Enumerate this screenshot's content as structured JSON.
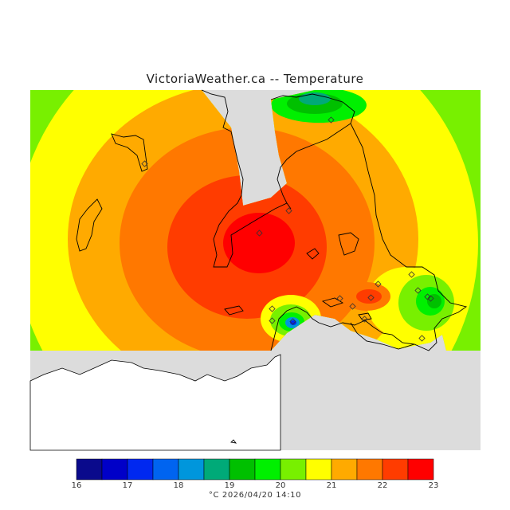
{
  "title": "VictoriaWeather.ca -- Temperature",
  "caption": "°C  2026/04/20 14:10",
  "legend": {
    "ticks": [
      "16",
      "17",
      "18",
      "19",
      "20",
      "21",
      "22",
      "23"
    ],
    "colors": [
      "#0a0a8c",
      "#0000c8",
      "#0028f0",
      "#0064f0",
      "#0096dc",
      "#00aa78",
      "#00c000",
      "#00f000",
      "#78f000",
      "#ffff00",
      "#ffaa00",
      "#ff7800",
      "#ff3c00",
      "#ff0000"
    ]
  },
  "colors": {
    "no_data": "#dcdcdc",
    "south_land": "#ffffff",
    "coast": "#000000",
    "base_band": "#78f000"
  }
}
